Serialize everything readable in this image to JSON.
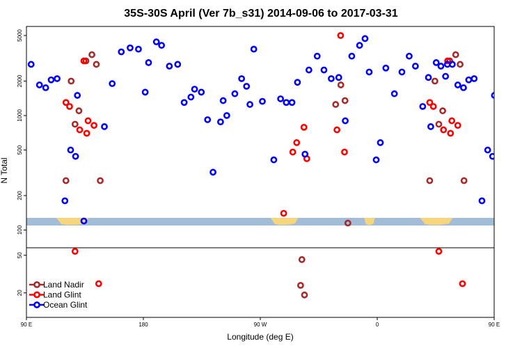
{
  "chart_data": {
    "type": "scatter",
    "title": "35S-30S April (Ver 7b_s31)   2014-09-06 to 2017-03-31",
    "xlabel": "Longitude (deg E)",
    "ylabel": "N Total",
    "x_axis": {
      "range": [
        90,
        450
      ],
      "ticks": [
        {
          "value": 90,
          "label": "90 E"
        },
        {
          "value": 180,
          "label": "180"
        },
        {
          "value": 270,
          "label": "90 W"
        },
        {
          "value": 360,
          "label": "0"
        },
        {
          "value": 450,
          "label": "90 E"
        },
        {
          "value": 540,
          "label": "180"
        }
      ]
    },
    "upper_panel": {
      "scale": "log",
      "range": [
        70,
        6000
      ],
      "ticks": [
        {
          "value": 100,
          "label": "100"
        },
        {
          "value": 200,
          "label": "200"
        },
        {
          "value": 500,
          "label": "500"
        },
        {
          "value": 1000,
          "label": "1000"
        },
        {
          "value": 2000,
          "label": "2000"
        },
        {
          "value": 5000,
          "label": "5000"
        }
      ]
    },
    "lower_panel": {
      "scale": "log",
      "range": [
        11,
        60
      ],
      "ticks": [
        {
          "value": 20,
          "label": "20"
        },
        {
          "value": 50,
          "label": "50"
        }
      ]
    },
    "map_strip": {
      "ocean_color": "#a3bcd8",
      "land_color": "#f6d57d"
    },
    "legend": {
      "position": "bottom-left"
    },
    "series": [
      {
        "name": "Land Nadir",
        "color": "#a52a2a",
        "points": [
          [
            120.4,
            270
          ],
          [
            124.4,
            2000
          ],
          [
            127.4,
            840
          ],
          [
            130.4,
            1100
          ],
          [
            135.8,
            3000
          ],
          [
            140.4,
            3400
          ],
          [
            143.8,
            2800
          ],
          [
            146.8,
            270
          ],
          [
            302,
            45
          ],
          [
            304,
            19
          ],
          [
            301,
            24
          ],
          [
            328,
            1250
          ],
          [
            332,
            1850
          ],
          [
            335.2,
            1350
          ],
          [
            337.4,
            115
          ],
          [
            400.4,
            270
          ],
          [
            404.4,
            2000
          ],
          [
            407.4,
            840
          ],
          [
            410.4,
            1100
          ],
          [
            415.8,
            3000
          ],
          [
            420.4,
            3400
          ],
          [
            423.8,
            2800
          ],
          [
            426.8,
            270
          ]
        ]
      },
      {
        "name": "Land Glint",
        "color": "#ff0000",
        "points": [
          [
            120.4,
            1300
          ],
          [
            123.2,
            1200
          ],
          [
            127.4,
            55
          ],
          [
            131,
            750
          ],
          [
            134.2,
            3000
          ],
          [
            136.4,
            700
          ],
          [
            137.4,
            900
          ],
          [
            142,
            820
          ],
          [
            145.6,
            25
          ],
          [
            288,
            140
          ],
          [
            295,
            480
          ],
          [
            298,
            580
          ],
          [
            303.6,
            790
          ],
          [
            305.8,
            420
          ],
          [
            329,
            750
          ],
          [
            331.8,
            5000
          ],
          [
            334.8,
            480
          ],
          [
            400.4,
            1300
          ],
          [
            403.2,
            1200
          ],
          [
            407.4,
            55
          ],
          [
            411,
            750
          ],
          [
            414.2,
            3000
          ],
          [
            416.4,
            700
          ],
          [
            417.4,
            900
          ],
          [
            422,
            820
          ],
          [
            425.6,
            25
          ]
        ]
      },
      {
        "name": "Ocean Glint",
        "color": "#0000ff",
        "points": [
          [
            93.6,
            2800
          ],
          [
            100,
            1850
          ],
          [
            104.8,
            1750
          ],
          [
            109,
            2050
          ],
          [
            113.6,
            2100
          ],
          [
            119.6,
            180
          ],
          [
            124,
            500
          ],
          [
            127.8,
            440
          ],
          [
            129.2,
            1500
          ],
          [
            134.2,
            120
          ],
          [
            150,
            800
          ],
          [
            156,
            1900
          ],
          [
            163,
            3600
          ],
          [
            169.8,
            3900
          ],
          [
            176.2,
            3800
          ],
          [
            181.4,
            1600
          ],
          [
            184,
            2900
          ],
          [
            190,
            4400
          ],
          [
            194,
            4100
          ],
          [
            200,
            2700
          ],
          [
            206.4,
            2800
          ],
          [
            211.4,
            1300
          ],
          [
            216.6,
            1450
          ],
          [
            219.4,
            1700
          ],
          [
            224.6,
            1600
          ],
          [
            229.4,
            920
          ],
          [
            233.6,
            320
          ],
          [
            239.4,
            880
          ],
          [
            241.4,
            1350
          ],
          [
            244.2,
            1000
          ],
          [
            250.4,
            1550
          ],
          [
            255.6,
            2100
          ],
          [
            259.4,
            1800
          ],
          [
            262,
            1250
          ],
          [
            265,
            3800
          ],
          [
            271.6,
            1330
          ],
          [
            280.4,
            410
          ],
          [
            285.6,
            1400
          ],
          [
            290,
            1300
          ],
          [
            294.4,
            1300
          ],
          [
            298.6,
            1950
          ],
          [
            304.4,
            460
          ],
          [
            307.4,
            2500
          ],
          [
            313.8,
            3300
          ],
          [
            319,
            2500
          ],
          [
            324.6,
            2100
          ],
          [
            330.4,
            2150
          ],
          [
            335.4,
            900
          ],
          [
            340.4,
            3300
          ],
          [
            346.4,
            4100
          ],
          [
            350.6,
            4700
          ],
          [
            353.8,
            2400
          ],
          [
            359.2,
            410
          ],
          [
            362.4,
            580
          ],
          [
            366.6,
            2600
          ],
          [
            373.2,
            1550
          ],
          [
            379,
            2400
          ],
          [
            384.6,
            3300
          ],
          [
            389.4,
            2700
          ],
          [
            395,
            1200
          ],
          [
            399.4,
            2150
          ],
          [
            401.2,
            800
          ],
          [
            405.4,
            2900
          ],
          [
            409,
            2700
          ],
          [
            412.6,
            2200
          ],
          [
            414,
            2800
          ],
          [
            417.8,
            2800
          ],
          [
            422,
            1850
          ],
          [
            426.4,
            1750
          ],
          [
            430.4,
            2050
          ],
          [
            434.6,
            2100
          ],
          [
            440.6,
            180
          ],
          [
            445,
            500
          ],
          [
            448.8,
            440
          ],
          [
            450.2,
            1500
          ]
        ]
      }
    ]
  }
}
